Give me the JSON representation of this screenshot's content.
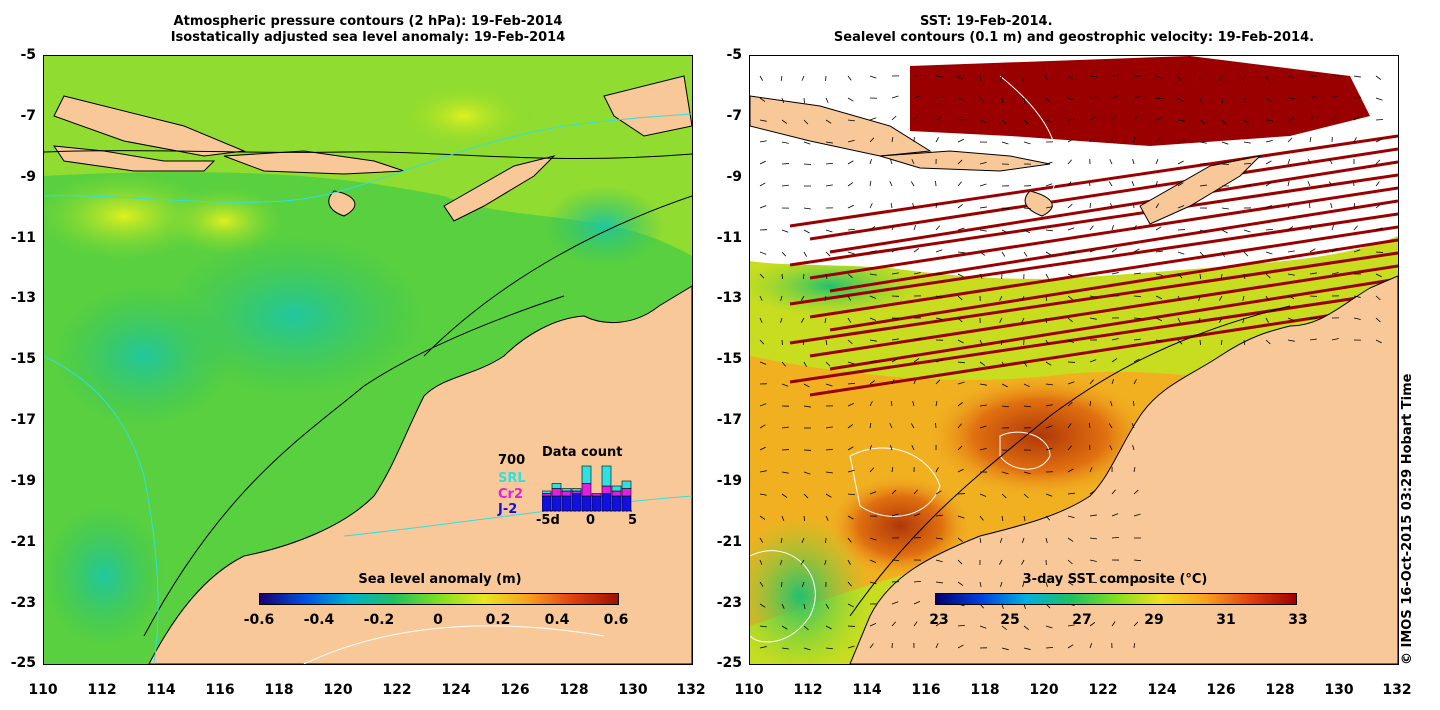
{
  "left_panel": {
    "title_line1": "Atmospheric pressure contours (2 hPa): 19-Feb-2014",
    "title_line2": "Isostatically adjusted sea level anomaly: 19-Feb-2014",
    "y_ticks": [
      "-5",
      "-7",
      "-9",
      "-11",
      "-13",
      "-15",
      "-17",
      "-19",
      "-21",
      "-23",
      "-25"
    ],
    "x_ticks": [
      "110",
      "112",
      "114",
      "116",
      "118",
      "120",
      "122",
      "124",
      "126",
      "128",
      "130",
      "132"
    ],
    "colorbar": {
      "title": "Sea level anomaly (m)",
      "labels": [
        "-0.6",
        "-0.4",
        "-0.2",
        "0",
        "0.2",
        "0.4",
        "0.6"
      ],
      "gradient": [
        "#1a0070",
        "#0050e0",
        "#00b0d0",
        "#20c060",
        "#80e020",
        "#e8e820",
        "#f8a020",
        "#e04010",
        "#a01000"
      ]
    },
    "data_count": {
      "title": "Data count",
      "max_label": "700",
      "legend": [
        {
          "name": "SRL",
          "color": "#30e0e0"
        },
        {
          "name": "Cr2",
          "color": "#e020e0"
        },
        {
          "name": "J-2",
          "color": "#1010e0"
        }
      ],
      "x_labels": [
        "-5d",
        "0",
        "5"
      ],
      "bars": [
        {
          "j2": 0.3,
          "cr2": 0.35,
          "srl": 0.4
        },
        {
          "j2": 0.3,
          "cr2": 0.45,
          "srl": 0.55
        },
        {
          "j2": 0.3,
          "cr2": 0.4,
          "srl": 0.45
        },
        {
          "j2": 0.35,
          "cr2": 0.4,
          "srl": 0.45
        },
        {
          "j2": 0.3,
          "cr2": 0.55,
          "srl": 0.9
        },
        {
          "j2": 0.3,
          "cr2": 0.35,
          "srl": 0.3
        },
        {
          "j2": 0.35,
          "cr2": 0.5,
          "srl": 0.9
        },
        {
          "j2": 0.3,
          "cr2": 0.4,
          "srl": 0.5
        },
        {
          "j2": 0.3,
          "cr2": 0.45,
          "srl": 0.6
        }
      ]
    }
  },
  "right_panel": {
    "title_line1": "SST: 19-Feb-2014.",
    "title_line2": "Sealevel contours (0.1 m) and geostrophic velocity: 19-Feb-2014.",
    "y_ticks": [
      "-5",
      "-7",
      "-9",
      "-11",
      "-13",
      "-15",
      "-17",
      "-19",
      "-21",
      "-23",
      "-25"
    ],
    "x_ticks": [
      "110",
      "112",
      "114",
      "116",
      "118",
      "120",
      "122",
      "124",
      "126",
      "128",
      "130",
      "132"
    ],
    "colorbar": {
      "title": "3-day SST composite (°C)",
      "labels": [
        "23",
        "25",
        "27",
        "29",
        "31",
        "33"
      ],
      "gradient": [
        "#000070",
        "#0040e0",
        "#00b0e0",
        "#20c060",
        "#80e020",
        "#f0e020",
        "#f8a020",
        "#e04010",
        "#a00000"
      ]
    }
  },
  "credit": "© IMOS 16-Oct-2015 03:29 Hobart Time",
  "colors": {
    "land": "#f8c898",
    "sla_base": "#50d040",
    "sla_high": "#c0e820",
    "sla_low": "#20c080",
    "sst_base": "#d8e020",
    "sst_warm": "#e07010",
    "sst_hot": "#b04008",
    "cloud": "#ffffff",
    "no_data_stripe": "#9a0000"
  }
}
